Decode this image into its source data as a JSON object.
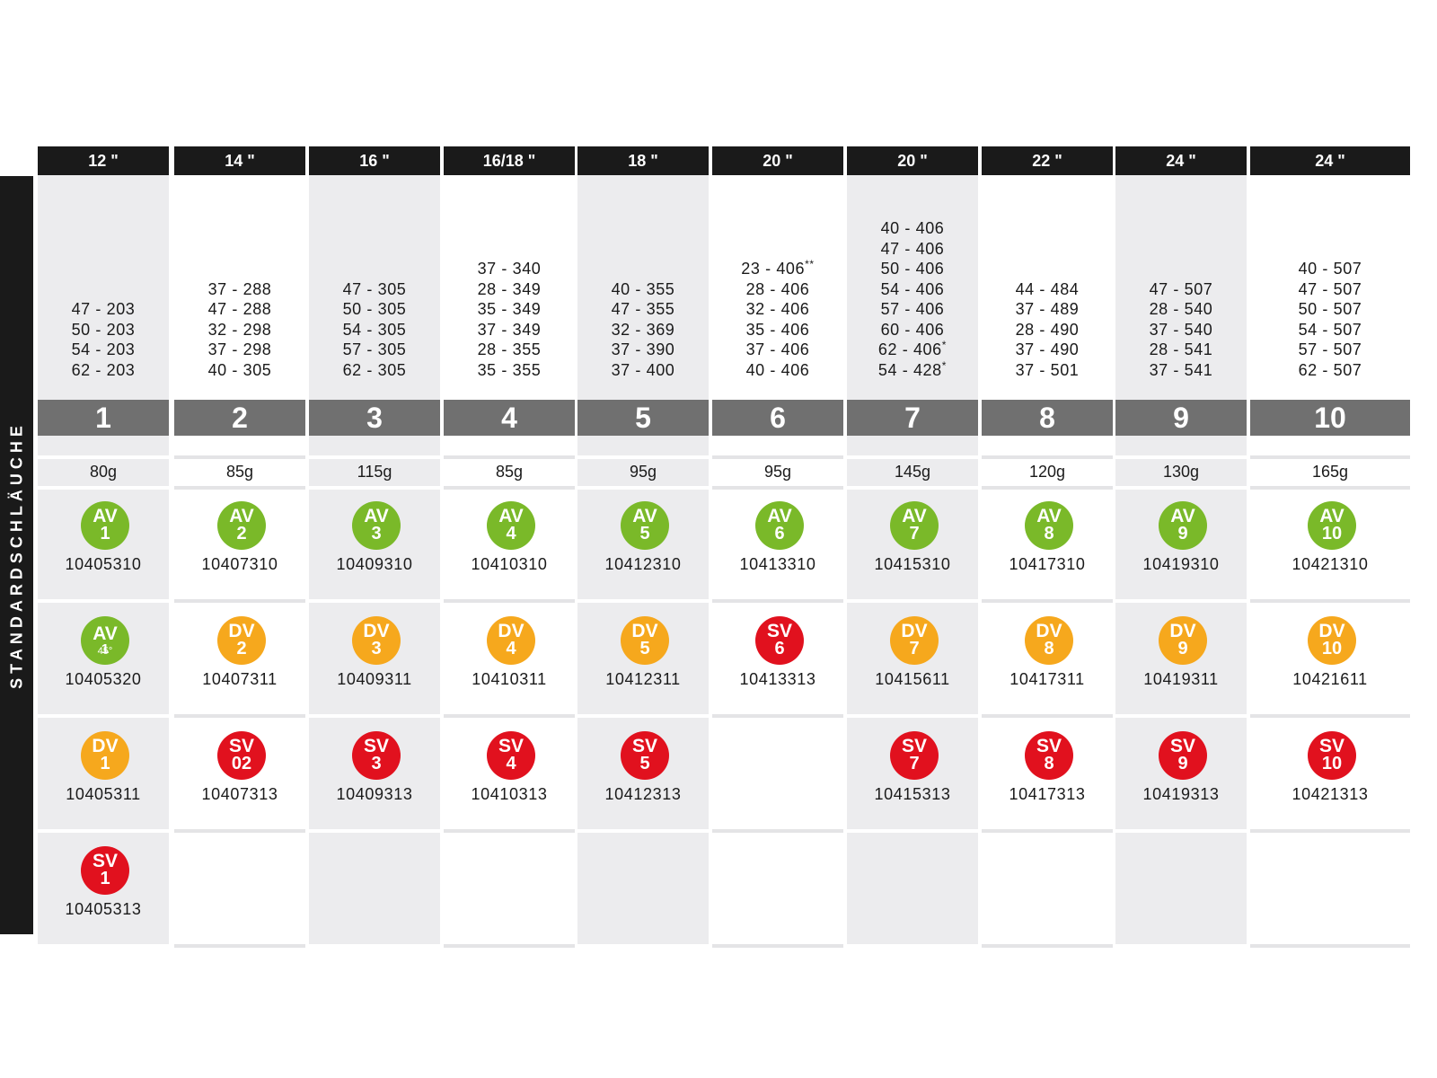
{
  "side_label": "STANDARDSCHLÄUCHE",
  "colors": {
    "av": "#7ab929",
    "dv": "#f6a81d",
    "sv": "#e1111e",
    "header": "#1a1a1a",
    "number_bar": "#707070",
    "shade": "#ececee"
  },
  "columns": [
    {
      "header": "12 \"",
      "number": "1",
      "weight": "80g",
      "sizes": [
        {
          "v": "47 - 203",
          "m": ""
        },
        {
          "v": "50 - 203",
          "m": ""
        },
        {
          "v": "54 - 203",
          "m": ""
        },
        {
          "v": "62 - 203",
          "m": ""
        }
      ],
      "valves": [
        {
          "type": "AV",
          "num": "1",
          "article": "10405310",
          "color": "green"
        },
        {
          "type": "AV",
          "num": "1",
          "extra": "45°",
          "article": "10405320",
          "color": "green"
        },
        {
          "type": "DV",
          "num": "1",
          "article": "10405311",
          "color": "orange"
        },
        {
          "type": "SV",
          "num": "1",
          "article": "10405313",
          "color": "red"
        }
      ]
    },
    {
      "header": "14 \"",
      "number": "2",
      "weight": "85g",
      "sizes": [
        {
          "v": "37 - 288",
          "m": ""
        },
        {
          "v": "47 - 288",
          "m": ""
        },
        {
          "v": "32 - 298",
          "m": ""
        },
        {
          "v": "37 - 298",
          "m": ""
        },
        {
          "v": "40 - 305",
          "m": ""
        }
      ],
      "valves": [
        {
          "type": "AV",
          "num": "2",
          "article": "10407310",
          "color": "green"
        },
        {
          "type": "DV",
          "num": "2",
          "article": "10407311",
          "color": "orange"
        },
        {
          "type": "SV",
          "num": "02",
          "article": "10407313",
          "color": "red"
        }
      ]
    },
    {
      "header": "16 \"",
      "number": "3",
      "weight": "115g",
      "sizes": [
        {
          "v": "47 - 305",
          "m": ""
        },
        {
          "v": "50 - 305",
          "m": ""
        },
        {
          "v": "54 - 305",
          "m": ""
        },
        {
          "v": "57 - 305",
          "m": ""
        },
        {
          "v": "62 - 305",
          "m": ""
        }
      ],
      "valves": [
        {
          "type": "AV",
          "num": "3",
          "article": "10409310",
          "color": "green"
        },
        {
          "type": "DV",
          "num": "3",
          "article": "10409311",
          "color": "orange"
        },
        {
          "type": "SV",
          "num": "3",
          "article": "10409313",
          "color": "red"
        }
      ]
    },
    {
      "header": "16/18 \"",
      "number": "4",
      "weight": "85g",
      "sizes": [
        {
          "v": "37 - 340",
          "m": ""
        },
        {
          "v": "28 - 349",
          "m": ""
        },
        {
          "v": "35 - 349",
          "m": ""
        },
        {
          "v": "37 - 349",
          "m": ""
        },
        {
          "v": "28 - 355",
          "m": ""
        },
        {
          "v": "35 - 355",
          "m": ""
        }
      ],
      "valves": [
        {
          "type": "AV",
          "num": "4",
          "article": "10410310",
          "color": "green"
        },
        {
          "type": "DV",
          "num": "4",
          "article": "10410311",
          "color": "orange"
        },
        {
          "type": "SV",
          "num": "4",
          "article": "10410313",
          "color": "red"
        }
      ]
    },
    {
      "header": "18 \"",
      "number": "5",
      "weight": "95g",
      "sizes": [
        {
          "v": "40 - 355",
          "m": ""
        },
        {
          "v": "47 - 355",
          "m": ""
        },
        {
          "v": "32 - 369",
          "m": ""
        },
        {
          "v": "37 - 390",
          "m": ""
        },
        {
          "v": "37 - 400",
          "m": ""
        }
      ],
      "valves": [
        {
          "type": "AV",
          "num": "5",
          "article": "10412310",
          "color": "green"
        },
        {
          "type": "DV",
          "num": "5",
          "article": "10412311",
          "color": "orange"
        },
        {
          "type": "SV",
          "num": "5",
          "article": "10412313",
          "color": "red"
        }
      ]
    },
    {
      "header": "20 \"",
      "number": "6",
      "weight": "95g",
      "sizes": [
        {
          "v": "23 - 406",
          "m": "**"
        },
        {
          "v": "28 - 406",
          "m": ""
        },
        {
          "v": "32 - 406",
          "m": ""
        },
        {
          "v": "35 - 406",
          "m": ""
        },
        {
          "v": "37 - 406",
          "m": ""
        },
        {
          "v": "40 - 406",
          "m": ""
        }
      ],
      "valves": [
        {
          "type": "AV",
          "num": "6",
          "article": "10413310",
          "color": "green"
        },
        {
          "type": "SV",
          "num": "6",
          "article": "10413313",
          "color": "red"
        }
      ]
    },
    {
      "header": "20 \"",
      "number": "7",
      "weight": "145g",
      "sizes": [
        {
          "v": "40 - 406",
          "m": ""
        },
        {
          "v": "47 - 406",
          "m": ""
        },
        {
          "v": "50 - 406",
          "m": ""
        },
        {
          "v": "54 - 406",
          "m": ""
        },
        {
          "v": "57 - 406",
          "m": ""
        },
        {
          "v": "60 - 406",
          "m": ""
        },
        {
          "v": "62 - 406",
          "m": "*"
        },
        {
          "v": "54 - 428",
          "m": "*"
        }
      ],
      "valves": [
        {
          "type": "AV",
          "num": "7",
          "article": "10415310",
          "color": "green"
        },
        {
          "type": "DV",
          "num": "7",
          "article": "10415611",
          "color": "orange"
        },
        {
          "type": "SV",
          "num": "7",
          "article": "10415313",
          "color": "red"
        }
      ]
    },
    {
      "header": "22 \"",
      "number": "8",
      "weight": "120g",
      "sizes": [
        {
          "v": "44 - 484",
          "m": ""
        },
        {
          "v": "37 - 489",
          "m": ""
        },
        {
          "v": "28 - 490",
          "m": ""
        },
        {
          "v": "37 - 490",
          "m": ""
        },
        {
          "v": "37 - 501",
          "m": ""
        }
      ],
      "valves": [
        {
          "type": "AV",
          "num": "8",
          "article": "10417310",
          "color": "green"
        },
        {
          "type": "DV",
          "num": "8",
          "article": "10417311",
          "color": "orange"
        },
        {
          "type": "SV",
          "num": "8",
          "article": "10417313",
          "color": "red"
        }
      ]
    },
    {
      "header": "24 \"",
      "number": "9",
      "weight": "130g",
      "sizes": [
        {
          "v": "47 - 507",
          "m": ""
        },
        {
          "v": "28 - 540",
          "m": ""
        },
        {
          "v": "37 - 540",
          "m": ""
        },
        {
          "v": "28 - 541",
          "m": ""
        },
        {
          "v": "37 - 541",
          "m": ""
        }
      ],
      "valves": [
        {
          "type": "AV",
          "num": "9",
          "article": "10419310",
          "color": "green"
        },
        {
          "type": "DV",
          "num": "9",
          "article": "10419311",
          "color": "orange"
        },
        {
          "type": "SV",
          "num": "9",
          "article": "10419313",
          "color": "red"
        }
      ]
    },
    {
      "header": "24 \"",
      "number": "10",
      "weight": "165g",
      "sizes": [
        {
          "v": "40 - 507",
          "m": ""
        },
        {
          "v": "47 - 507",
          "m": ""
        },
        {
          "v": "50 - 507",
          "m": ""
        },
        {
          "v": "54 - 507",
          "m": ""
        },
        {
          "v": "57 - 507",
          "m": ""
        },
        {
          "v": "62 - 507",
          "m": ""
        }
      ],
      "valves": [
        {
          "type": "AV",
          "num": "10",
          "article": "10421310",
          "color": "green"
        },
        {
          "type": "DV",
          "num": "10",
          "article": "10421611",
          "color": "orange"
        },
        {
          "type": "SV",
          "num": "10",
          "article": "10421313",
          "color": "red"
        }
      ]
    }
  ]
}
